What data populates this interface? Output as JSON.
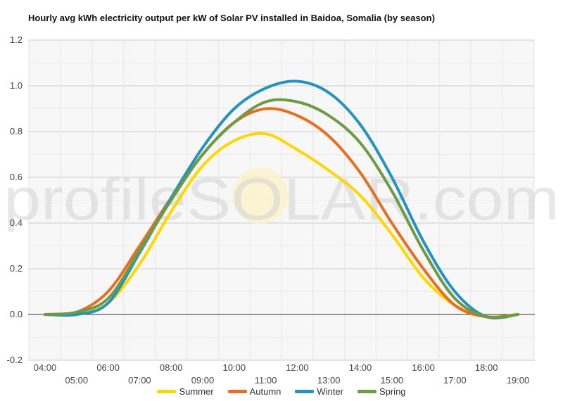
{
  "chart_data": {
    "type": "line",
    "title": "Hourly avg kWh electricity output per kW of Solar PV installed in Baidoa, Somalia (by season)",
    "watermark": "profileSOLAR.com",
    "xlabel": "",
    "ylabel": "",
    "ylim": [
      -0.2,
      1.2
    ],
    "yticks": [
      "-0.2",
      "0.0",
      "0.2",
      "0.4",
      "0.6",
      "0.8",
      "1.0",
      "1.2"
    ],
    "x": [
      "04:00",
      "05:00",
      "06:00",
      "07:00",
      "08:00",
      "09:00",
      "10:00",
      "11:00",
      "12:00",
      "13:00",
      "14:00",
      "15:00",
      "16:00",
      "17:00",
      "18:00",
      "19:00"
    ],
    "grid": true,
    "legend_position": "bottom",
    "series": [
      {
        "name": "Summer",
        "color": "#FFD700",
        "values": [
          0.0,
          0.0,
          0.05,
          0.22,
          0.45,
          0.65,
          0.76,
          0.79,
          0.72,
          0.63,
          0.52,
          0.35,
          0.16,
          0.04,
          -0.01,
          0.0
        ]
      },
      {
        "name": "Autumn",
        "color": "#E86F22",
        "values": [
          0.0,
          0.01,
          0.1,
          0.3,
          0.51,
          0.7,
          0.84,
          0.9,
          0.87,
          0.78,
          0.62,
          0.4,
          0.2,
          0.04,
          -0.01,
          0.0
        ]
      },
      {
        "name": "Winter",
        "color": "#2493C0",
        "values": [
          0.0,
          0.0,
          0.05,
          0.27,
          0.51,
          0.73,
          0.9,
          0.99,
          1.02,
          0.97,
          0.83,
          0.6,
          0.32,
          0.1,
          -0.01,
          0.0
        ]
      },
      {
        "name": "Spring",
        "color": "#6C9A45",
        "values": [
          0.0,
          0.01,
          0.07,
          0.28,
          0.5,
          0.7,
          0.84,
          0.93,
          0.93,
          0.87,
          0.75,
          0.54,
          0.28,
          0.07,
          -0.01,
          0.0
        ]
      }
    ]
  }
}
